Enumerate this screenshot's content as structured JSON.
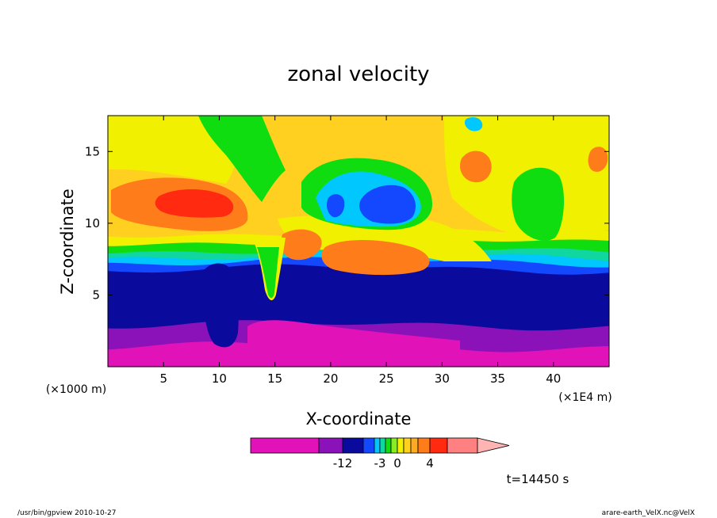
{
  "chart_data": {
    "type": "contour",
    "title": "zonal velocity",
    "xlabel": "X-coordinate",
    "ylabel": "Z-coordinate",
    "x_unit": "(×1E4 m)",
    "y_unit": "(×1000 m)",
    "xlim": [
      0,
      45
    ],
    "ylim": [
      0,
      17.5
    ],
    "x_ticks": [
      5,
      10,
      15,
      20,
      25,
      30,
      35,
      40
    ],
    "y_ticks": [
      5,
      10,
      15
    ],
    "grid": false,
    "colorbar": {
      "levels": [
        "<-20",
        "-20..-12",
        "-12..-8",
        "-8..-4",
        "-4..-3",
        "-3..-2",
        "-2..-1",
        "-1..0",
        "0..1",
        "1..2",
        "2..3",
        "3..4",
        "4..6",
        "6..10",
        ">10"
      ],
      "tick_labels": [
        {
          "label": "-12",
          "boundary": 2
        },
        {
          "label": "-3",
          "boundary": 5
        },
        {
          "label": "0",
          "boundary": 8
        },
        {
          "label": "4",
          "boundary": 12
        }
      ],
      "colors": [
        "#e012b8",
        "#8a12b8",
        "#0a0a9c",
        "#1448ff",
        "#00c8ff",
        "#10d6a0",
        "#10dd10",
        "#88ee22",
        "#f0f000",
        "#ffd020",
        "#ffaa20",
        "#ff7c1a",
        "#ff2a10",
        "#ff8080",
        "#ffb4b4"
      ]
    },
    "bands": [
      {
        "name": "magenta",
        "color": "#e012b8",
        "z_top": 1.4
      },
      {
        "name": "purple",
        "color": "#8a12b8",
        "z_top": 2.9
      },
      {
        "name": "dark-blue",
        "color": "#0a0a9c",
        "z_top": 6.8
      },
      {
        "name": "blue",
        "color": "#1448ff",
        "z_top": 7.3
      },
      {
        "name": "cyan",
        "color": "#00c8ff",
        "z_top": 7.7
      },
      {
        "name": "teal",
        "color": "#10d6a0",
        "z_top": 8.1
      },
      {
        "name": "green",
        "color": "#10dd10",
        "z_top": 8.7
      },
      {
        "name": "yellow",
        "color": "#f0f000",
        "z_top": 9.3
      },
      {
        "name": "orange-light",
        "color": "#ffd020",
        "z_top": 17.5
      }
    ]
  },
  "time_label": "t=14450 s",
  "footer": {
    "left": "/usr/bin/gpview   2010-10-27",
    "right": "arare-earth_VelX.nc@VelX"
  }
}
